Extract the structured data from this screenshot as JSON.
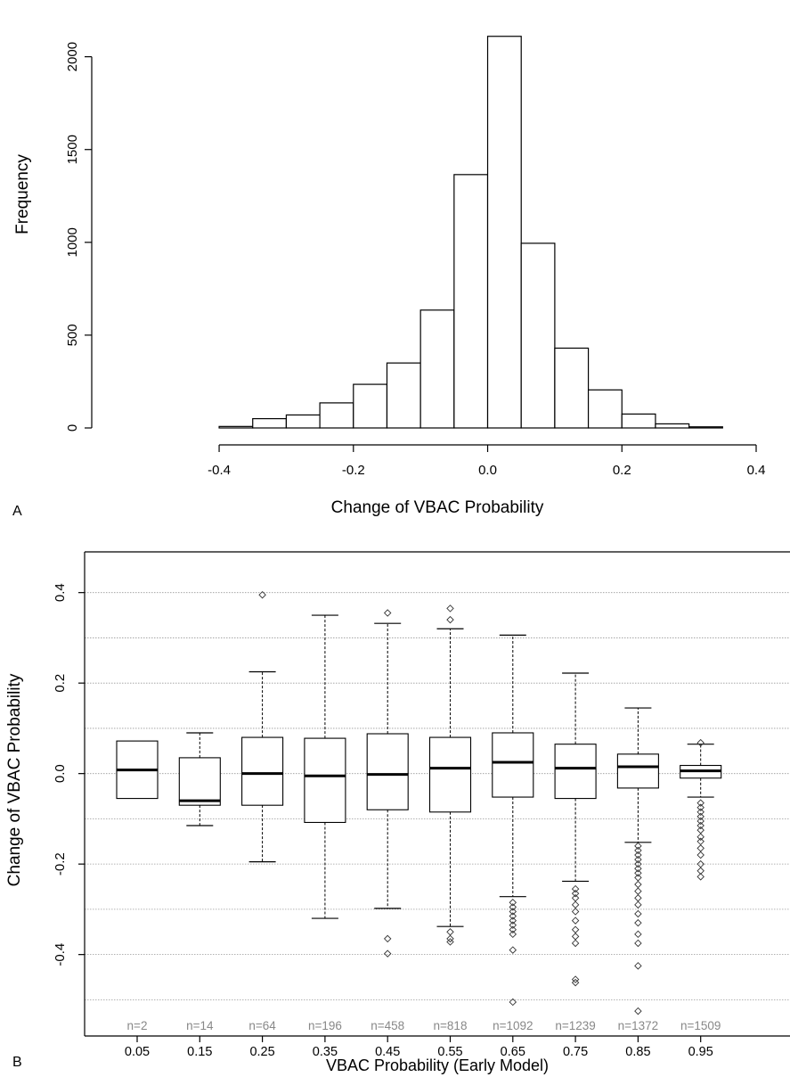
{
  "panels": {
    "a_label": "A",
    "b_label": "B"
  },
  "chart_data": [
    {
      "type": "bar",
      "subtype": "histogram",
      "panel": "A",
      "xlabel": "Change of VBAC Probability",
      "ylabel": "Frequency",
      "bin_edges": [
        -0.55,
        -0.5,
        -0.45,
        -0.4,
        -0.35,
        -0.3,
        -0.25,
        -0.2,
        -0.15,
        -0.1,
        -0.05,
        0.0,
        0.05,
        0.1,
        0.15,
        0.2,
        0.25,
        0.3,
        0.35,
        0.4
      ],
      "values": [
        0,
        0,
        0,
        8,
        50,
        70,
        135,
        235,
        350,
        635,
        1365,
        2110,
        995,
        430,
        205,
        75,
        22,
        6,
        0
      ],
      "xlim": [
        -0.55,
        0.4
      ],
      "ylim": [
        0,
        2200
      ],
      "xticks": [
        -0.4,
        -0.2,
        0.0,
        0.2,
        0.4
      ],
      "xtick_labels": [
        "-0.4",
        "-0.2",
        "0.0",
        "0.2",
        "0.4"
      ],
      "yticks": [
        0,
        500,
        1000,
        1500,
        2000
      ],
      "ytick_labels": [
        "0",
        "500",
        "1000",
        "1500",
        "2000"
      ],
      "fill": "#ffffff",
      "stroke": "#000000"
    },
    {
      "type": "box",
      "panel": "B",
      "xlabel": "VBAC Probability (Early Model)",
      "ylabel": "Change of VBAC Probability",
      "categories": [
        "0.05",
        "0.15",
        "0.25",
        "0.35",
        "0.45",
        "0.55",
        "0.65",
        "0.75",
        "0.85",
        "0.95"
      ],
      "counts": [
        "n=2",
        "n=14",
        "n=64",
        "n=196",
        "n=458",
        "n=818",
        "n=1092",
        "n=1239",
        "n=1372",
        "n=1509"
      ],
      "boxes": [
        {
          "whisker_low": null,
          "q1": -0.055,
          "median": 0.008,
          "q3": 0.072,
          "whisker_high": null,
          "outliers": []
        },
        {
          "whisker_low": -0.115,
          "q1": -0.07,
          "median": -0.06,
          "q3": 0.035,
          "whisker_high": 0.09,
          "outliers": []
        },
        {
          "whisker_low": -0.195,
          "q1": -0.07,
          "median": 0.0,
          "q3": 0.08,
          "whisker_high": 0.225,
          "outliers": [
            0.395
          ]
        },
        {
          "whisker_low": -0.32,
          "q1": -0.108,
          "median": -0.005,
          "q3": 0.078,
          "whisker_high": 0.35,
          "outliers": []
        },
        {
          "whisker_low": -0.298,
          "q1": -0.08,
          "median": -0.002,
          "q3": 0.088,
          "whisker_high": 0.332,
          "outliers": [
            0.355,
            -0.365,
            -0.398
          ]
        },
        {
          "whisker_low": -0.338,
          "q1": -0.085,
          "median": 0.012,
          "q3": 0.08,
          "whisker_high": 0.32,
          "outliers": [
            0.365,
            0.34,
            -0.35,
            -0.365,
            -0.372
          ]
        },
        {
          "whisker_low": -0.272,
          "q1": -0.052,
          "median": 0.025,
          "q3": 0.09,
          "whisker_high": 0.306,
          "outliers": [
            -0.285,
            -0.295,
            -0.305,
            -0.315,
            -0.325,
            -0.335,
            -0.345,
            -0.355,
            -0.39,
            -0.505
          ]
        },
        {
          "whisker_low": -0.238,
          "q1": -0.055,
          "median": 0.012,
          "q3": 0.065,
          "whisker_high": 0.222,
          "outliers": [
            -0.255,
            -0.265,
            -0.275,
            -0.29,
            -0.305,
            -0.325,
            -0.345,
            -0.36,
            -0.375,
            -0.455,
            -0.462
          ]
        },
        {
          "whisker_low": -0.152,
          "q1": -0.032,
          "median": 0.015,
          "q3": 0.043,
          "whisker_high": 0.145,
          "outliers": [
            -0.16,
            -0.17,
            -0.18,
            -0.19,
            -0.2,
            -0.21,
            -0.22,
            -0.23,
            -0.245,
            -0.26,
            -0.275,
            -0.29,
            -0.31,
            -0.33,
            -0.355,
            -0.375,
            -0.425,
            -0.525
          ]
        },
        {
          "whisker_low": -0.052,
          "q1": -0.01,
          "median": 0.006,
          "q3": 0.018,
          "whisker_high": 0.065,
          "outliers": [
            0.068,
            -0.065,
            -0.075,
            -0.085,
            -0.095,
            -0.105,
            -0.115,
            -0.125,
            -0.14,
            -0.15,
            -0.165,
            -0.18,
            -0.2,
            -0.215,
            -0.228
          ]
        }
      ],
      "ylim": [
        -0.58,
        0.49
      ],
      "yticks": [
        -0.4,
        -0.2,
        0.0,
        0.2,
        0.4
      ],
      "ytick_labels": [
        "-0.4",
        "-0.2",
        "0.0",
        "0.2",
        "0.4"
      ],
      "grid_lines": [
        -0.5,
        -0.4,
        -0.3,
        -0.2,
        -0.1,
        0.0,
        0.1,
        0.2,
        0.3,
        0.4
      ],
      "grid": true,
      "grid_color": "#999999",
      "count_color": "#888888"
    }
  ]
}
